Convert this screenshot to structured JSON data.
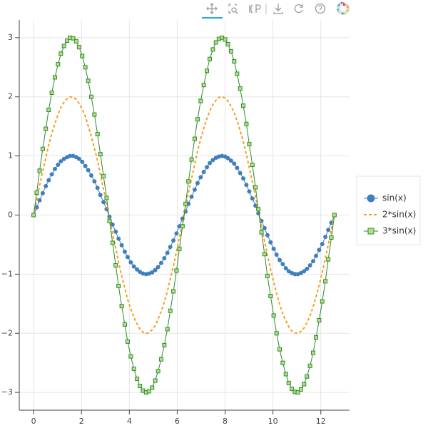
{
  "chart_data": {
    "type": "line",
    "x": [
      0,
      0.13,
      0.25,
      0.38,
      0.51,
      0.63,
      0.76,
      0.89,
      1.02,
      1.14,
      1.27,
      1.4,
      1.52,
      1.65,
      1.78,
      1.9,
      2.03,
      2.16,
      2.28,
      2.41,
      2.54,
      2.67,
      2.79,
      2.92,
      3.05,
      3.17,
      3.3,
      3.43,
      3.55,
      3.68,
      3.81,
      3.93,
      4.06,
      4.19,
      4.32,
      4.44,
      4.57,
      4.7,
      4.82,
      4.95,
      5.08,
      5.2,
      5.33,
      5.46,
      5.59,
      5.71,
      5.84,
      5.97,
      6.09,
      6.22,
      6.35,
      6.47,
      6.6,
      6.73,
      6.85,
      6.98,
      7.11,
      7.24,
      7.36,
      7.49,
      7.62,
      7.74,
      7.87,
      8.0,
      8.12,
      8.25,
      8.38,
      8.5,
      8.63,
      8.76,
      8.89,
      9.01,
      9.14,
      9.27,
      9.39,
      9.52,
      9.65,
      9.77,
      9.9,
      10.03,
      10.15,
      10.28,
      10.41,
      10.54,
      10.66,
      10.79,
      10.92,
      11.04,
      11.17,
      11.3,
      11.42,
      11.55,
      11.68,
      11.8,
      11.93,
      12.06,
      12.19,
      12.31,
      12.44,
      12.57
    ],
    "series": [
      {
        "name": "sin(x)",
        "color": "#3f7fbf",
        "marker": "circle",
        "marker_fill": "#3f7fbf",
        "values": [
          0,
          0.13,
          0.25,
          0.37,
          0.49,
          0.59,
          0.69,
          0.78,
          0.85,
          0.91,
          0.95,
          0.98,
          1.0,
          1.0,
          0.98,
          0.95,
          0.9,
          0.83,
          0.76,
          0.67,
          0.57,
          0.46,
          0.34,
          0.22,
          0.1,
          -0.03,
          -0.16,
          -0.28,
          -0.4,
          -0.51,
          -0.62,
          -0.71,
          -0.8,
          -0.87,
          -0.92,
          -0.96,
          -0.99,
          -1.0,
          -0.99,
          -0.97,
          -0.93,
          -0.88,
          -0.81,
          -0.73,
          -0.64,
          -0.54,
          -0.43,
          -0.31,
          -0.19,
          -0.06,
          0.06,
          0.19,
          0.31,
          0.43,
          0.54,
          0.64,
          0.73,
          0.81,
          0.88,
          0.93,
          0.97,
          0.99,
          1.0,
          0.99,
          0.96,
          0.92,
          0.87,
          0.8,
          0.71,
          0.62,
          0.51,
          0.4,
          0.28,
          0.16,
          0.03,
          -0.1,
          -0.22,
          -0.34,
          -0.46,
          -0.57,
          -0.67,
          -0.76,
          -0.83,
          -0.9,
          -0.95,
          -0.98,
          -1.0,
          -1.0,
          -0.98,
          -0.95,
          -0.91,
          -0.85,
          -0.78,
          -0.69,
          -0.59,
          -0.49,
          -0.37,
          -0.25,
          -0.13,
          0
        ]
      },
      {
        "name": "2*sin(x)",
        "color": "#f5a020",
        "line_dash": "dashed",
        "values": [
          0,
          0.25,
          0.5,
          0.74,
          0.97,
          1.19,
          1.38,
          1.55,
          1.7,
          1.82,
          1.91,
          1.97,
          2.0,
          1.99,
          1.96,
          1.89,
          1.79,
          1.67,
          1.51,
          1.33,
          1.13,
          0.92,
          0.68,
          0.44,
          0.19,
          -0.06,
          -0.32,
          -0.56,
          -0.8,
          -1.03,
          -1.24,
          -1.43,
          -1.59,
          -1.73,
          -1.84,
          -1.93,
          -1.98,
          -2.0,
          -1.99,
          -1.94,
          -1.87,
          -1.76,
          -1.63,
          -1.47,
          -1.29,
          -1.08,
          -0.86,
          -0.62,
          -0.38,
          -0.13,
          0.13,
          0.38,
          0.62,
          0.86,
          1.08,
          1.29,
          1.47,
          1.63,
          1.76,
          1.87,
          1.94,
          1.99,
          2.0,
          1.98,
          1.93,
          1.84,
          1.73,
          1.59,
          1.43,
          1.24,
          1.03,
          0.8,
          0.56,
          0.32,
          0.06,
          -0.19,
          -0.44,
          -0.68,
          -0.92,
          -1.13,
          -1.33,
          -1.51,
          -1.67,
          -1.79,
          -1.89,
          -1.96,
          -1.99,
          -2.0,
          -1.97,
          -1.91,
          -1.82,
          -1.7,
          -1.55,
          -1.38,
          -1.19,
          -0.97,
          -0.74,
          -0.5,
          -0.25,
          0
        ]
      },
      {
        "name": "3*sin(x)",
        "color": "#2e8b2e",
        "marker": "square",
        "marker_fill": "#b5df86",
        "values": [
          0,
          0.38,
          0.75,
          1.12,
          1.46,
          1.78,
          2.07,
          2.33,
          2.55,
          2.73,
          2.86,
          2.95,
          3.0,
          2.99,
          2.94,
          2.84,
          2.69,
          2.5,
          2.27,
          2.0,
          1.7,
          1.37,
          1.03,
          0.66,
          0.29,
          -0.1,
          -0.47,
          -0.85,
          -1.2,
          -1.54,
          -1.85,
          -2.14,
          -2.39,
          -2.6,
          -2.77,
          -2.89,
          -2.97,
          -3.0,
          -2.98,
          -2.92,
          -2.8,
          -2.64,
          -2.44,
          -2.2,
          -1.93,
          -1.62,
          -1.29,
          -0.94,
          -0.57,
          -0.19,
          0.19,
          0.57,
          0.94,
          1.29,
          1.62,
          1.93,
          2.2,
          2.44,
          2.64,
          2.8,
          2.92,
          2.98,
          3.0,
          2.97,
          2.89,
          2.77,
          2.6,
          2.39,
          2.14,
          1.85,
          1.54,
          1.2,
          0.85,
          0.47,
          0.1,
          -0.29,
          -0.66,
          -1.03,
          -1.37,
          -1.7,
          -2.0,
          -2.27,
          -2.5,
          -2.69,
          -2.84,
          -2.94,
          -2.99,
          -3.0,
          -2.95,
          -2.86,
          -2.73,
          -2.55,
          -2.33,
          -2.07,
          -1.78,
          -1.46,
          -1.12,
          -0.75,
          -0.38,
          0
        ]
      }
    ],
    "xlim": [
      -0.6,
      13.2
    ],
    "ylim": [
      -3.3,
      3.3
    ],
    "xticks": [
      0,
      2,
      4,
      6,
      8,
      10,
      12
    ],
    "yticks": [
      {
        "value": -3,
        "label": "−3"
      },
      {
        "value": -2,
        "label": "−2"
      },
      {
        "value": -1,
        "label": "−1"
      },
      0,
      1,
      2,
      3
    ],
    "grid": true,
    "legend": "right"
  }
}
